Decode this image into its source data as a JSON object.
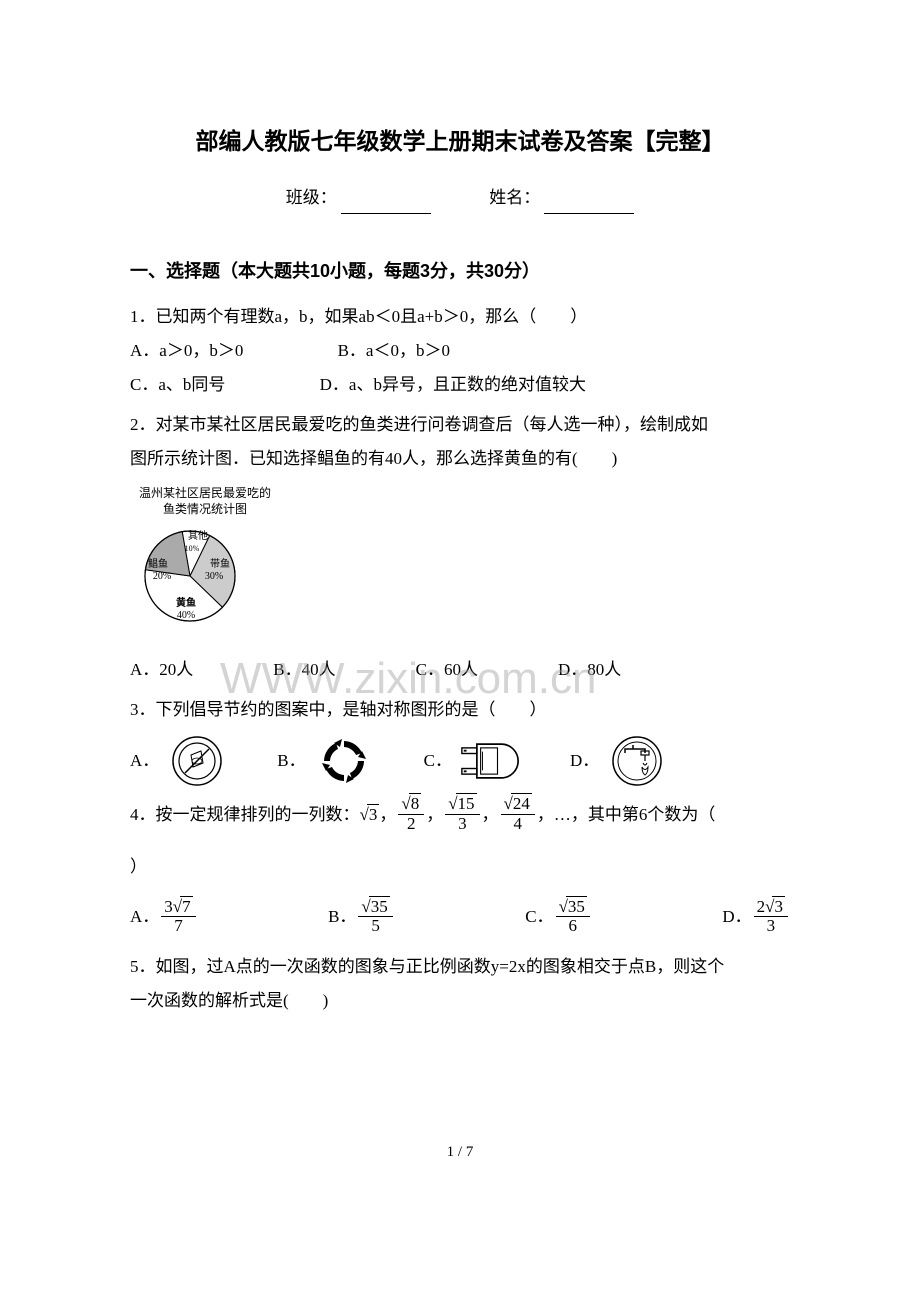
{
  "title": "部编人教版七年级数学上册期末试卷及答案【完整】",
  "header": {
    "class_label": "班级：",
    "name_label": "姓名："
  },
  "section1": {
    "heading": "一、选择题（本大题共10小题，每题3分，共30分）"
  },
  "q1": {
    "stem": "1．已知两个有理数a，b，如果ab＜0且a+b＞0，那么（　　）",
    "a": "A．a＞0，b＞0",
    "b": "B．a＜0，b＞0",
    "c": "C．a、b同号",
    "d": "D．a、b异号，且正数的绝对值较大"
  },
  "q2": {
    "stem1": "2．对某市某社区居民最爱吃的鱼类进行问卷调查后（每人选一种），绘制成如",
    "stem2": "图所示统计图．已知选择鲳鱼的有40人，那么选择黄鱼的有(　　)",
    "chart": {
      "caption1": "温州某社区居民最爱吃的",
      "caption2": "鱼类情况统计图",
      "slices": [
        {
          "label": "其他",
          "value": 10,
          "color": "#ffffff",
          "start": -10,
          "end": 26
        },
        {
          "label": "带鱼",
          "value": 30,
          "color": "#cccccc",
          "start": 26,
          "end": 134,
          "text": "带鱼",
          "pct": "30%"
        },
        {
          "label": "黄鱼",
          "value": 40,
          "color": "#ffffff",
          "start": 134,
          "end": 278,
          "text": "黄鱼",
          "pct": "40%"
        },
        {
          "label": "鲳鱼",
          "value": 20,
          "color": "#aaaaaa",
          "start": 278,
          "end": 350,
          "text": "鲳鱼",
          "pct": "20%"
        }
      ]
    },
    "a": "A．20人",
    "b": "B．40人",
    "c": "C．60人",
    "d": "D．80人"
  },
  "q3": {
    "stem": "3．下列倡导节约的图案中，是轴对称图形的是（　　）",
    "labels": {
      "a": "A．",
      "b": "B．",
      "c": "C．",
      "d": "D．"
    }
  },
  "q4": {
    "stem_prefix": "4．按一定规律排列的一列数：",
    "seq": [
      {
        "num": "3",
        "den": null
      },
      {
        "num": "8",
        "den": "2"
      },
      {
        "num": "15",
        "den": "3"
      },
      {
        "num": "24",
        "den": "4"
      }
    ],
    "stem_suffix": "，…，其中第6个数为（",
    "closing": "）",
    "options": {
      "a": {
        "label": "A．",
        "coef": "3",
        "radicand": "7",
        "den": "7"
      },
      "b": {
        "label": "B．",
        "coef": "",
        "radicand": "35",
        "den": "5"
      },
      "c": {
        "label": "C．",
        "coef": "",
        "radicand": "35",
        "den": "6"
      },
      "d": {
        "label": "D．",
        "coef": "2",
        "radicand": "3",
        "den": "3"
      }
    }
  },
  "q5": {
    "stem1": "5．如图，过A点的一次函数的图象与正比例函数y=2x的图象相交于点B，则这个",
    "stem2": "一次函数的解析式是(　　)"
  },
  "watermark": "WWW.zixin.com.cn",
  "page_num": "1 / 7"
}
